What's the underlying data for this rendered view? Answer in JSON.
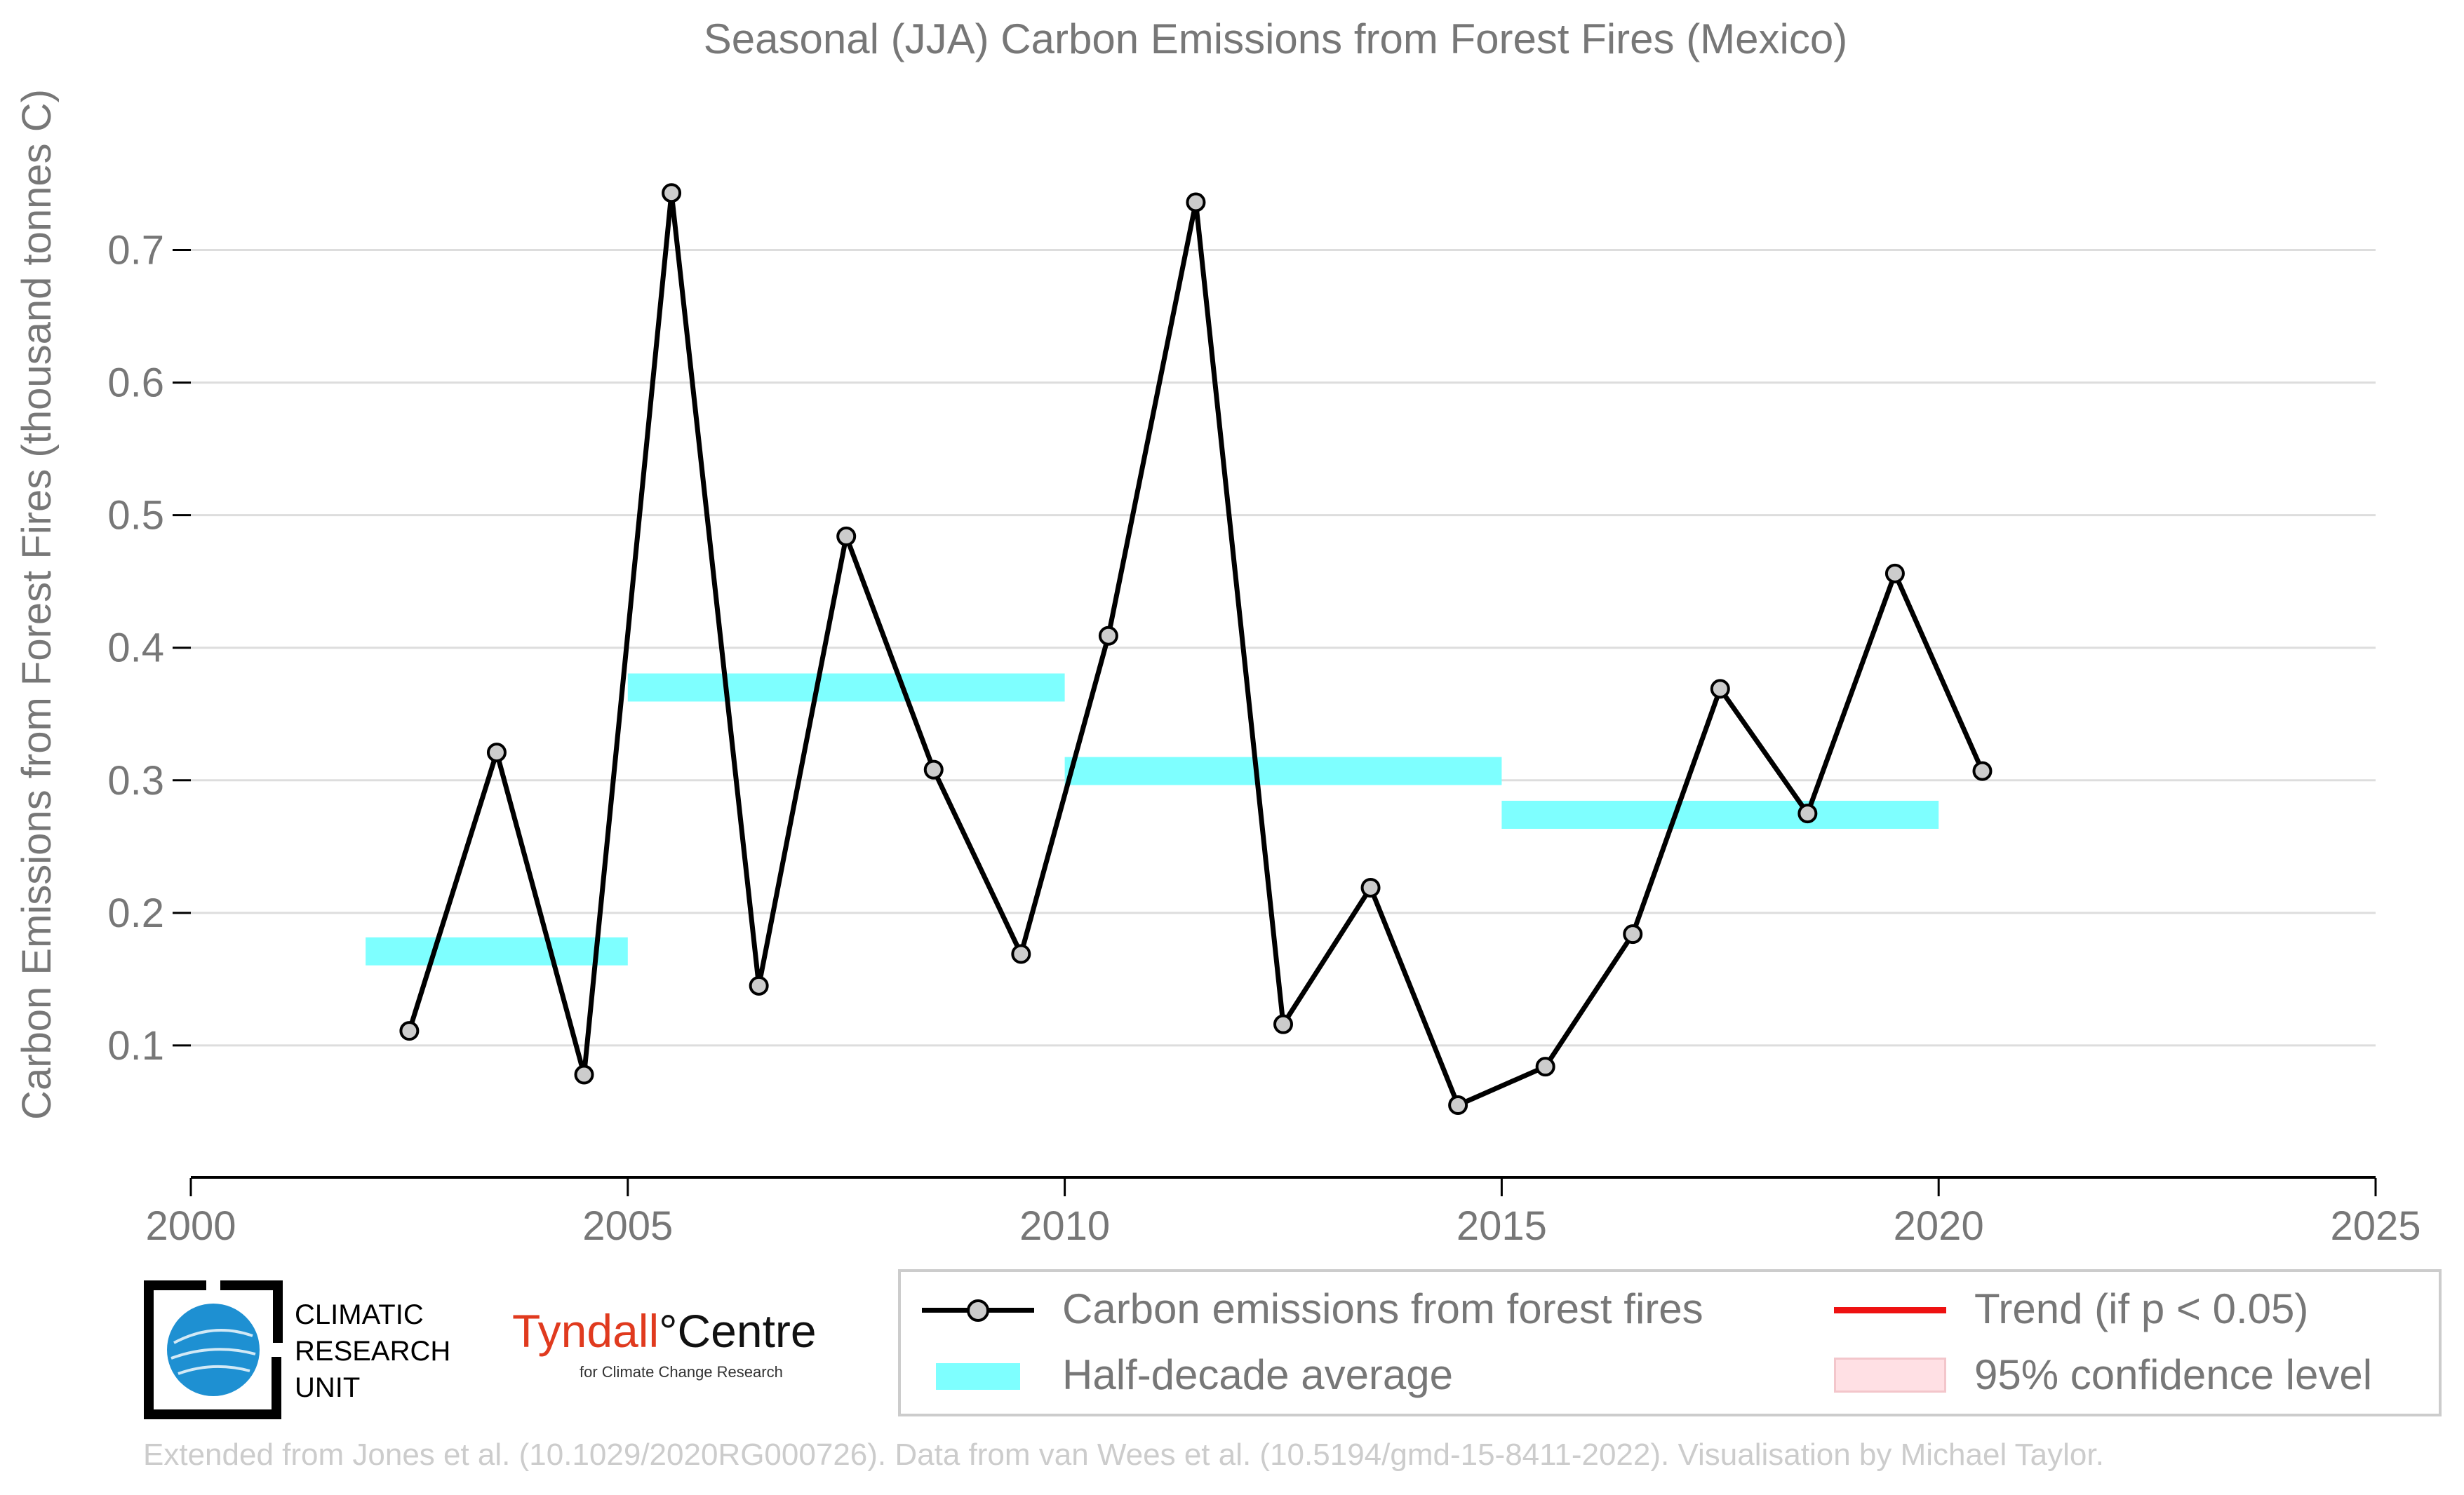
{
  "chart_data": {
    "type": "line",
    "title": "Seasonal (JJA) Carbon Emissions from Forest Fires (Mexico)",
    "ylabel": "Carbon Emissions from Forest Fires (thousand tonnes C)",
    "xlabel": "",
    "xlim": [
      2000,
      2025
    ],
    "ylim": [
      0.0,
      0.75
    ],
    "x_ticks": [
      "2000",
      "2005",
      "2010",
      "2015",
      "2020",
      "2025"
    ],
    "x_tick_values": [
      2000,
      2005,
      2010,
      2015,
      2020,
      2025
    ],
    "y_ticks": [
      "0.1",
      "0.2",
      "0.3",
      "0.4",
      "0.5",
      "0.6",
      "0.7"
    ],
    "y_tick_values": [
      0.1,
      0.2,
      0.3,
      0.4,
      0.5,
      0.6,
      0.7
    ],
    "grid": "horizontal",
    "series": [
      {
        "name": "Carbon emissions from forest fires",
        "color": "#000000",
        "marker_color": "#cccccc",
        "x": [
          2002.5,
          2003.5,
          2004.5,
          2005.5,
          2006.5,
          2007.5,
          2008.5,
          2009.5,
          2010.5,
          2011.5,
          2012.5,
          2013.5,
          2014.5,
          2015.5,
          2016.5,
          2017.5,
          2018.5,
          2019.5,
          2020.5
        ],
        "y": [
          0.111,
          0.321,
          0.078,
          0.743,
          0.145,
          0.484,
          0.308,
          0.169,
          0.409,
          0.736,
          0.116,
          0.219,
          0.055,
          0.084,
          0.184,
          0.369,
          0.275,
          0.456,
          0.307
        ]
      }
    ],
    "half_decade_average": {
      "name": "Half-decade average",
      "color": "#7effff",
      "segments": [
        {
          "x0": 2002,
          "x1": 2005,
          "value": 0.171
        },
        {
          "x0": 2005,
          "x1": 2010,
          "value": 0.37
        },
        {
          "x0": 2010,
          "x1": 2015,
          "value": 0.307
        },
        {
          "x0": 2015,
          "x1": 2020,
          "value": 0.274
        }
      ]
    },
    "legend": {
      "placement": "bottom-right",
      "items": [
        {
          "label": "Carbon emissions from forest fires",
          "symbol": "line-marker"
        },
        {
          "label": "Trend (if p < 0.05)",
          "symbol": "red-line",
          "color": "#ee1111"
        },
        {
          "label": "Half-decade average",
          "symbol": "cyan-bar",
          "color": "#7effff"
        },
        {
          "label": "95% confidence level",
          "symbol": "pink-patch",
          "color": "#ffe0e4"
        }
      ]
    }
  },
  "logos": {
    "cru": [
      "CLIMATIC",
      "RESEARCH",
      "UNIT"
    ],
    "tyndall_red": "Tyndall",
    "tyndall_black": "°Centre",
    "tyndall_sub": "for Climate Change Research"
  },
  "footer": "Extended from Jones et al. (10.1029/2020RG000726). Data from van Wees et al. (10.5194/gmd-15-8411-2022). Visualisation by Michael Taylor."
}
